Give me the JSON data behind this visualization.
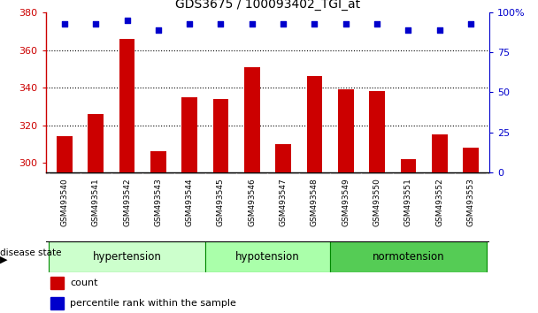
{
  "title": "GDS3675 / 100093402_TGI_at",
  "samples": [
    "GSM493540",
    "GSM493541",
    "GSM493542",
    "GSM493543",
    "GSM493544",
    "GSM493545",
    "GSM493546",
    "GSM493547",
    "GSM493548",
    "GSM493549",
    "GSM493550",
    "GSM493551",
    "GSM493552",
    "GSM493553"
  ],
  "counts": [
    314,
    326,
    366,
    306,
    335,
    334,
    351,
    310,
    346,
    339,
    338,
    302,
    315,
    308
  ],
  "percentiles": [
    93,
    93,
    95,
    89,
    93,
    93,
    93,
    93,
    93,
    93,
    93,
    89,
    89,
    93
  ],
  "groups": [
    {
      "label": "hypertension",
      "start": 0,
      "end": 5,
      "color": "#ccffcc"
    },
    {
      "label": "hypotension",
      "start": 5,
      "end": 9,
      "color": "#aaffaa"
    },
    {
      "label": "normotension",
      "start": 9,
      "end": 14,
      "color": "#55cc55"
    }
  ],
  "bar_color": "#cc0000",
  "dot_color": "#0000cc",
  "ylim_left": [
    295,
    380
  ],
  "ylim_right": [
    0,
    100
  ],
  "yticks_left": [
    300,
    320,
    340,
    360,
    380
  ],
  "yticks_right": [
    0,
    25,
    50,
    75,
    100
  ],
  "grid_values": [
    320,
    340,
    360
  ],
  "tick_area_color": "#c8c8c8",
  "group_border_color": "#008800",
  "legend_red": "#cc0000",
  "legend_blue": "#0000cc"
}
